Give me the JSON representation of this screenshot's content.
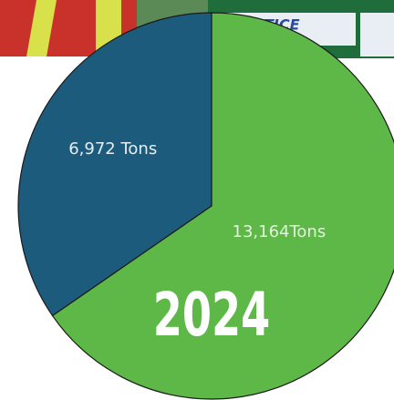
{
  "photo_text": "NOTICE",
  "chart_data": {
    "type": "pie",
    "title": "2024",
    "categories": [
      null,
      null
    ],
    "values": [
      6972,
      13164
    ],
    "value_labels": [
      "6,972 Tons",
      "13,164Tons"
    ],
    "colors": [
      "#1d5b7d",
      "#5db847"
    ]
  }
}
